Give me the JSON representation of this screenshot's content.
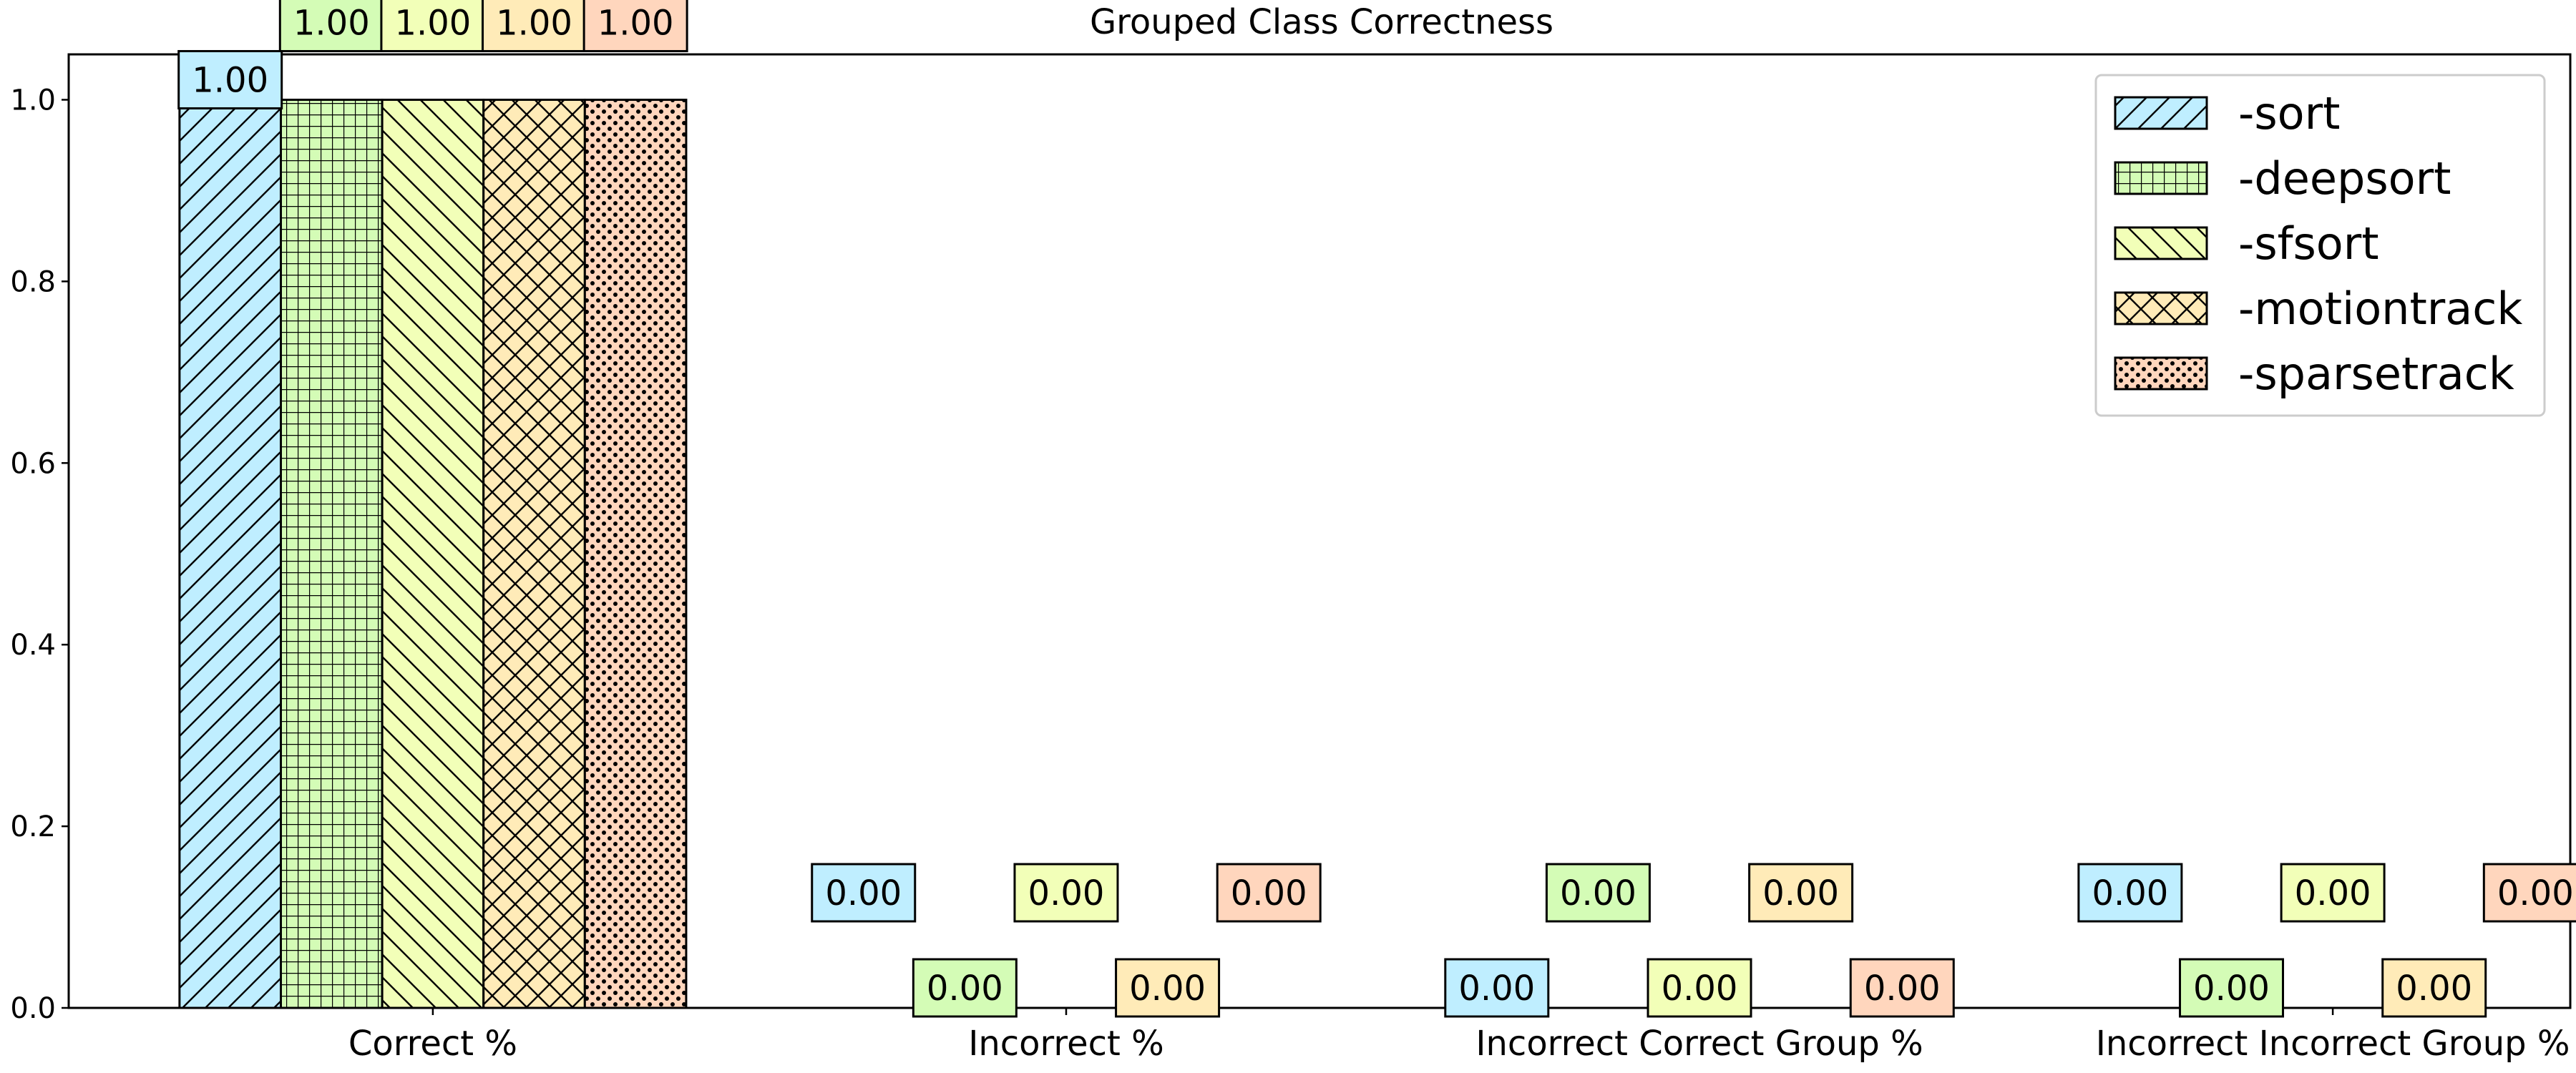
{
  "chart_data": {
    "type": "bar",
    "title": "Grouped Class Correctness",
    "xlabel": "",
    "ylabel": "",
    "categories": [
      "Correct %",
      "Incorrect %",
      "Incorrect Correct Group %",
      "Incorrect Incorrect Group %"
    ],
    "series": [
      {
        "name": "-sort",
        "values": [
          1.0,
          0.0,
          0.0,
          0.0
        ],
        "color": "#bfeeff",
        "hatch": "diag-up"
      },
      {
        "name": "-deepsort",
        "values": [
          1.0,
          0.0,
          0.0,
          0.0
        ],
        "color": "#d4fcb6",
        "hatch": "grid"
      },
      {
        "name": "-sfsort",
        "values": [
          1.0,
          0.0,
          0.0,
          0.0
        ],
        "color": "#f2ffb8",
        "hatch": "diag-down"
      },
      {
        "name": "-motiontrack",
        "values": [
          1.0,
          0.0,
          0.0,
          0.0
        ],
        "color": "#ffebb8",
        "hatch": "crosshatch"
      },
      {
        "name": "-sparsetrack",
        "values": [
          1.0,
          0.0,
          0.0,
          0.0
        ],
        "color": "#ffd6bd",
        "hatch": "dots"
      }
    ],
    "bar_labels": [
      [
        "1.00",
        "0.00",
        "0.00",
        "0.00"
      ],
      [
        "1.00",
        "0.00",
        "0.00",
        "0.00"
      ],
      [
        "1.00",
        "0.00",
        "0.00",
        "0.00"
      ],
      [
        "1.00",
        "0.00",
        "0.00",
        "0.00"
      ],
      [
        "1.00",
        "0.00",
        "0.00",
        "0.00"
      ]
    ],
    "ylim": [
      0,
      1.05
    ],
    "yticks": [
      "0.0",
      "0.2",
      "0.4",
      "0.6",
      "0.8",
      "1.0"
    ],
    "grid": false,
    "legend_position": "top-right"
  }
}
